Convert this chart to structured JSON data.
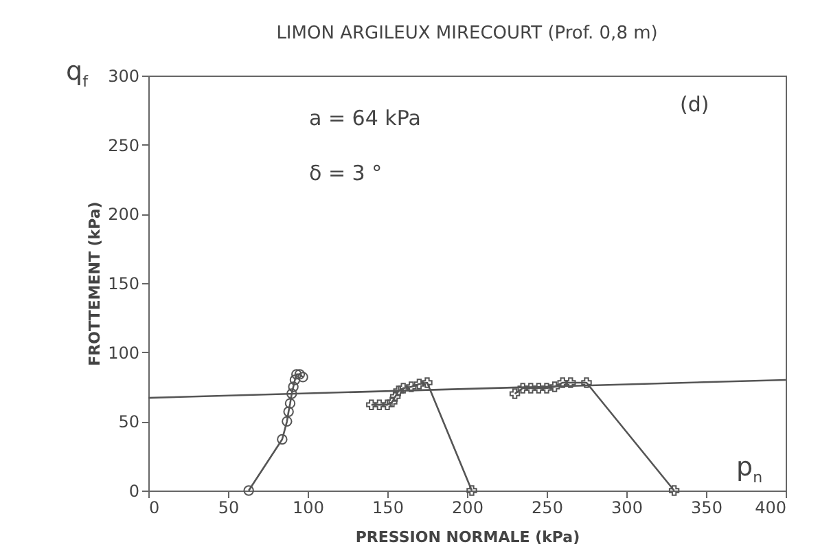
{
  "chart_data": {
    "type": "line",
    "title": "LIMON ARGILEUX MIRECOURT (Prof. 0,8 m)",
    "xlabel": "PRESSION NORMALE (kPa)",
    "ylabel": "FROTTEMENT (kPa)",
    "annotations": [
      "a = 64 kPa",
      "δ =  3 °",
      "(d)",
      "q$_{f}$",
      "p$_{n}$"
    ],
    "xlim": [
      0,
      400
    ],
    "xticks": [
      0,
      50,
      100,
      150,
      200,
      250,
      300,
      350,
      400
    ],
    "ylim": [
      0,
      300
    ],
    "yticks": [
      0,
      50,
      100,
      150,
      200,
      250,
      300
    ],
    "grid": false,
    "line_style": "solid",
    "series": [
      {
        "color": "#555555",
        "marker": "circle",
        "x": [
          63,
          84,
          87,
          88,
          89,
          90,
          91,
          92,
          93,
          95,
          97
        ],
        "values": [
          0,
          37,
          50,
          57,
          63,
          70,
          75,
          80,
          84,
          84,
          82
        ]
      },
      {
        "color": "#555555",
        "marker": "cross",
        "x": [
          140,
          145,
          150,
          153,
          155,
          157,
          160,
          165,
          170,
          175,
          203
        ],
        "values": [
          62,
          62,
          62,
          64,
          68,
          72,
          74,
          75,
          77,
          78,
          0
        ]
      },
      {
        "color": "#555555",
        "marker": "cross",
        "x": [
          230,
          235,
          240,
          245,
          250,
          255,
          260,
          265,
          275,
          330
        ],
        "values": [
          70,
          74,
          74,
          74,
          74,
          75,
          78,
          78,
          78,
          0
        ]
      },
      {
        "color": "#555555",
        "marker": "none",
        "x": [
          0,
          400
        ],
        "values": [
          67,
          80
        ]
      }
    ]
  }
}
